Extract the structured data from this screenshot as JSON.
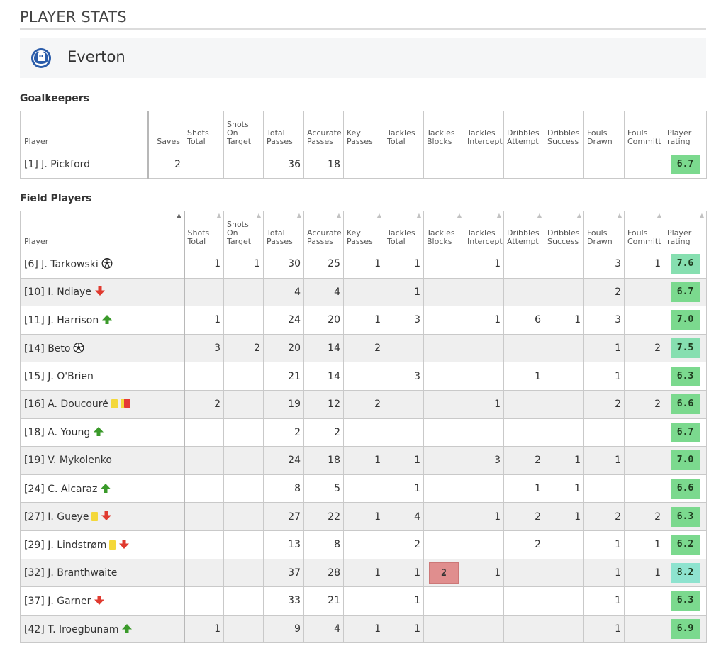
{
  "page_title": "PLAYER STATS",
  "team": {
    "name": "Everton",
    "logo_icon": "everton-crest-icon"
  },
  "colors": {
    "rating_green": "#6fd48a",
    "rating_high": "#7fdcc0",
    "highlight_red": "#e08e8e",
    "alt_row": "#efefef"
  },
  "goalkeepers": {
    "section_title": "Goalkeepers",
    "columns": [
      "Player",
      "Saves",
      "Shots Total",
      "Shots On Target",
      "Total Passes",
      "Accurate Passes",
      "Key Passes",
      "Tackles Total",
      "Tackles Blocks",
      "Tackles Intercept",
      "Dribbles Attempt",
      "Dribbles Success",
      "Fouls Drawn",
      "Fouls Committ",
      "Player rating"
    ],
    "rows": [
      {
        "player": "[1] J. Pickford",
        "saves": "2",
        "shots_total": "",
        "shots_on": "",
        "total_passes": "36",
        "acc_passes": "18",
        "key_passes": "",
        "tackles_total": "",
        "tackles_blocks": "",
        "tackles_int": "",
        "drib_att": "",
        "drib_succ": "",
        "fouls_drawn": "",
        "fouls_comm": "",
        "rating": "6.7"
      }
    ]
  },
  "field_players": {
    "section_title": "Field Players",
    "columns": [
      "Player",
      "Shots Total",
      "Shots On Target",
      "Total Passes",
      "Accurate Passes",
      "Key Passes",
      "Tackles Total",
      "Tackles Blocks",
      "Tackles Intercept",
      "Dribbles Attempt",
      "Dribbles Success",
      "Fouls Drawn",
      "Fouls Committ",
      "Player rating"
    ],
    "rows": [
      {
        "player": "[6] J. Tarkowski",
        "icons": [
          "goal"
        ],
        "shots_total": "1",
        "shots_on": "1",
        "total_passes": "30",
        "acc_passes": "25",
        "key_passes": "1",
        "tackles_total": "1",
        "tackles_blocks": "",
        "tackles_int": "1",
        "drib_att": "",
        "drib_succ": "",
        "fouls_drawn": "3",
        "fouls_comm": "1",
        "rating": "7.6"
      },
      {
        "player": "[10] I. Ndiaye",
        "icons": [
          "sub-out"
        ],
        "shots_total": "",
        "shots_on": "",
        "total_passes": "4",
        "acc_passes": "4",
        "key_passes": "",
        "tackles_total": "1",
        "tackles_blocks": "",
        "tackles_int": "",
        "drib_att": "",
        "drib_succ": "",
        "fouls_drawn": "2",
        "fouls_comm": "",
        "rating": "6.7"
      },
      {
        "player": "[11] J. Harrison",
        "icons": [
          "sub-in"
        ],
        "shots_total": "1",
        "shots_on": "",
        "total_passes": "24",
        "acc_passes": "20",
        "key_passes": "1",
        "tackles_total": "3",
        "tackles_blocks": "",
        "tackles_int": "1",
        "drib_att": "6",
        "drib_succ": "1",
        "fouls_drawn": "3",
        "fouls_comm": "",
        "rating": "7.0"
      },
      {
        "player": "[14] Beto",
        "icons": [
          "goal"
        ],
        "shots_total": "3",
        "shots_on": "2",
        "total_passes": "20",
        "acc_passes": "14",
        "key_passes": "2",
        "tackles_total": "",
        "tackles_blocks": "",
        "tackles_int": "",
        "drib_att": "",
        "drib_succ": "",
        "fouls_drawn": "1",
        "fouls_comm": "2",
        "rating": "7.5"
      },
      {
        "player": "[15] J. O'Brien",
        "icons": [],
        "shots_total": "",
        "shots_on": "",
        "total_passes": "21",
        "acc_passes": "14",
        "key_passes": "",
        "tackles_total": "3",
        "tackles_blocks": "",
        "tackles_int": "",
        "drib_att": "1",
        "drib_succ": "",
        "fouls_drawn": "1",
        "fouls_comm": "",
        "rating": "6.3"
      },
      {
        "player": "[16] A. Doucouré",
        "icons": [
          "yellow-card",
          "second-yellow-red-card"
        ],
        "shots_total": "2",
        "shots_on": "",
        "total_passes": "19",
        "acc_passes": "12",
        "key_passes": "2",
        "tackles_total": "",
        "tackles_blocks": "",
        "tackles_int": "1",
        "drib_att": "",
        "drib_succ": "",
        "fouls_drawn": "2",
        "fouls_comm": "2",
        "rating": "6.6"
      },
      {
        "player": "[18] A. Young",
        "icons": [
          "sub-in"
        ],
        "shots_total": "",
        "shots_on": "",
        "total_passes": "2",
        "acc_passes": "2",
        "key_passes": "",
        "tackles_total": "",
        "tackles_blocks": "",
        "tackles_int": "",
        "drib_att": "",
        "drib_succ": "",
        "fouls_drawn": "",
        "fouls_comm": "",
        "rating": "6.7"
      },
      {
        "player": "[19] V. Mykolenko",
        "icons": [],
        "shots_total": "",
        "shots_on": "",
        "total_passes": "24",
        "acc_passes": "18",
        "key_passes": "1",
        "tackles_total": "1",
        "tackles_blocks": "",
        "tackles_int": "3",
        "drib_att": "2",
        "drib_succ": "1",
        "fouls_drawn": "1",
        "fouls_comm": "",
        "rating": "7.0"
      },
      {
        "player": "[24] C. Alcaraz",
        "icons": [
          "sub-in"
        ],
        "shots_total": "",
        "shots_on": "",
        "total_passes": "8",
        "acc_passes": "5",
        "key_passes": "",
        "tackles_total": "1",
        "tackles_blocks": "",
        "tackles_int": "",
        "drib_att": "1",
        "drib_succ": "1",
        "fouls_drawn": "",
        "fouls_comm": "",
        "rating": "6.6"
      },
      {
        "player": "[27] I. Gueye",
        "icons": [
          "yellow-card",
          "sub-out"
        ],
        "shots_total": "",
        "shots_on": "",
        "total_passes": "27",
        "acc_passes": "22",
        "key_passes": "1",
        "tackles_total": "4",
        "tackles_blocks": "",
        "tackles_int": "1",
        "drib_att": "2",
        "drib_succ": "1",
        "fouls_drawn": "2",
        "fouls_comm": "2",
        "rating": "6.3"
      },
      {
        "player": "[29] J. Lindstrøm",
        "icons": [
          "yellow-card",
          "sub-out"
        ],
        "shots_total": "",
        "shots_on": "",
        "total_passes": "13",
        "acc_passes": "8",
        "key_passes": "",
        "tackles_total": "2",
        "tackles_blocks": "",
        "tackles_int": "",
        "drib_att": "2",
        "drib_succ": "",
        "fouls_drawn": "1",
        "fouls_comm": "1",
        "rating": "6.2"
      },
      {
        "player": "[32] J. Branthwaite",
        "icons": [],
        "shots_total": "",
        "shots_on": "",
        "total_passes": "37",
        "acc_passes": "28",
        "key_passes": "1",
        "tackles_total": "1",
        "tackles_blocks": "2",
        "tackles_blocks_highlight": true,
        "tackles_int": "1",
        "drib_att": "",
        "drib_succ": "",
        "fouls_drawn": "1",
        "fouls_comm": "1",
        "rating": "8.2"
      },
      {
        "player": "[37] J. Garner",
        "icons": [
          "sub-out"
        ],
        "shots_total": "",
        "shots_on": "",
        "total_passes": "33",
        "acc_passes": "21",
        "key_passes": "",
        "tackles_total": "1",
        "tackles_blocks": "",
        "tackles_int": "",
        "drib_att": "",
        "drib_succ": "",
        "fouls_drawn": "1",
        "fouls_comm": "",
        "rating": "6.3"
      },
      {
        "player": "[42] T. Iroegbunam",
        "icons": [
          "sub-in"
        ],
        "shots_total": "1",
        "shots_on": "",
        "total_passes": "9",
        "acc_passes": "4",
        "key_passes": "1",
        "tackles_total": "1",
        "tackles_blocks": "",
        "tackles_int": "",
        "drib_att": "",
        "drib_succ": "",
        "fouls_drawn": "1",
        "fouls_comm": "",
        "rating": "6.9"
      }
    ]
  }
}
